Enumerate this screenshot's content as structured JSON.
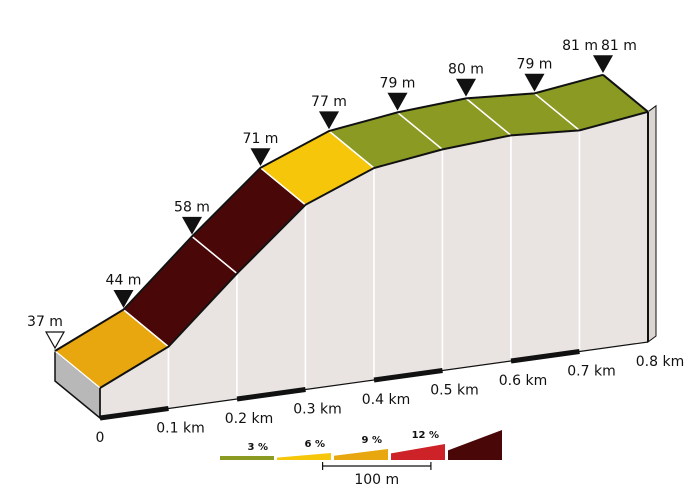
{
  "chart_data": {
    "type": "area",
    "title": "",
    "xlabel": "",
    "ylabel": "",
    "x_ticks": [
      "0",
      "0.1 km",
      "0.2 km",
      "0.3 km",
      "0.4 km",
      "0.5 km",
      "0.6 km",
      "0.7 km",
      "0.8 km"
    ],
    "points": [
      {
        "km": 0.0,
        "elev": 37,
        "label": "37 m",
        "marker": "start"
      },
      {
        "km": 0.1,
        "elev": 44,
        "label": "44 m",
        "marker": "mid"
      },
      {
        "km": 0.2,
        "elev": 58,
        "label": "58 m",
        "marker": "mid"
      },
      {
        "km": 0.3,
        "elev": 71,
        "label": "71 m",
        "marker": "mid"
      },
      {
        "km": 0.4,
        "elev": 77,
        "label": "77 m",
        "marker": "mid"
      },
      {
        "km": 0.5,
        "elev": 79,
        "label": "79 m",
        "marker": "mid"
      },
      {
        "km": 0.6,
        "elev": 80,
        "label": "80 m",
        "marker": "mid"
      },
      {
        "km": 0.7,
        "elev": 79,
        "label": "79 m",
        "marker": "mid"
      },
      {
        "km": 0.8,
        "elev": 81,
        "label": "81 m",
        "marker": "end",
        "extra_label": "81 m"
      }
    ],
    "segments": [
      {
        "from": 0.0,
        "to": 0.1,
        "color": "#e8a60f"
      },
      {
        "from": 0.1,
        "to": 0.2,
        "color": "#4a0707"
      },
      {
        "from": 0.2,
        "to": 0.3,
        "color": "#4a0707"
      },
      {
        "from": 0.3,
        "to": 0.4,
        "color": "#f6c60a"
      },
      {
        "from": 0.4,
        "to": 0.5,
        "color": "#8a9a22"
      },
      {
        "from": 0.5,
        "to": 0.6,
        "color": "#8a9a22"
      },
      {
        "from": 0.6,
        "to": 0.7,
        "color": "#8a9a22"
      },
      {
        "from": 0.7,
        "to": 0.8,
        "color": "#8a9a22"
      }
    ],
    "legend": {
      "items": [
        {
          "label": "3 %",
          "color": "#8a9a22"
        },
        {
          "label": "6 %",
          "color": "#f6c60a"
        },
        {
          "label": "9 %",
          "color": "#e8a60f"
        },
        {
          "label": "12 %",
          "color": "#cc2228"
        },
        {
          "label": "",
          "color": "#4a0707"
        }
      ],
      "scale_label": "100 m"
    },
    "colors": {
      "wall": "#e9e4e2",
      "wall_stroke": "#ffffff",
      "outline": "#111111",
      "start_block": "#b8b8b8"
    }
  }
}
